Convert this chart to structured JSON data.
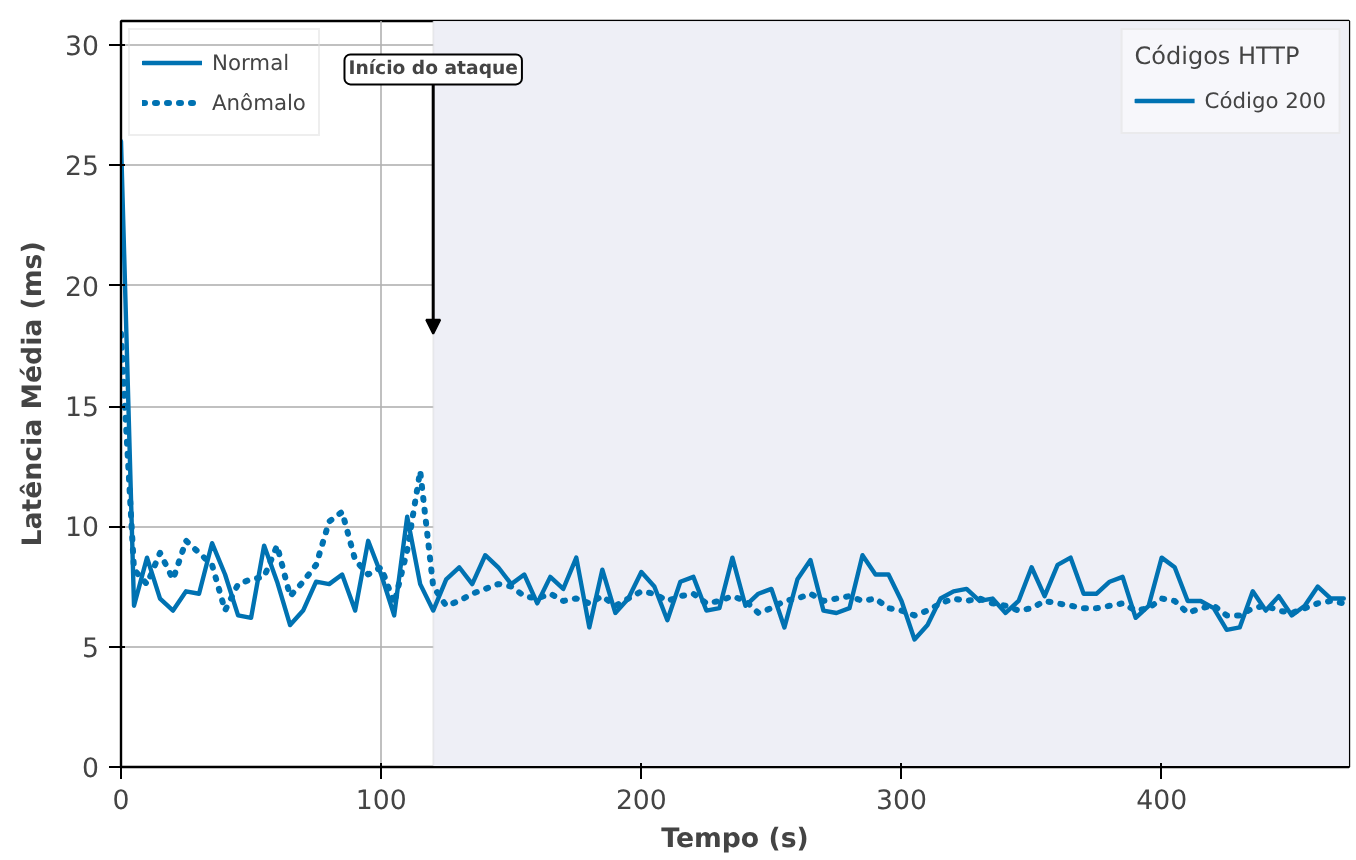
{
  "chart_data": {
    "type": "line",
    "xlabel": "Tempo (s)",
    "ylabel": "Latência Média (ms)",
    "legend_title": "Códigos HTTP",
    "x": [
      0,
      5,
      10,
      15,
      20,
      25,
      30,
      35,
      40,
      45,
      50,
      55,
      60,
      65,
      70,
      75,
      80,
      85,
      90,
      95,
      100,
      105,
      110,
      115,
      120,
      125,
      130,
      135,
      140,
      145,
      150,
      155,
      160,
      165,
      170,
      175,
      180,
      185,
      190,
      195,
      200,
      205,
      210,
      215,
      220,
      225,
      230,
      235,
      240,
      245,
      250,
      255,
      260,
      265,
      270,
      275,
      280,
      285,
      290,
      295,
      300,
      305,
      310,
      315,
      320,
      325,
      330,
      335,
      340,
      345,
      350,
      355,
      360,
      365,
      370,
      375,
      380,
      385,
      390,
      395,
      400,
      405,
      410,
      415,
      420,
      425,
      430,
      435,
      440,
      445,
      450,
      455,
      460,
      465,
      470
    ],
    "series": [
      {
        "name": "Normal",
        "color": "#0072b2",
        "line_style": "solid",
        "values": [
          26,
          6.7,
          8.7,
          7.0,
          6.5,
          7.3,
          7.2,
          9.3,
          8.0,
          6.3,
          6.2,
          9.2,
          7.7,
          5.9,
          6.5,
          7.7,
          7.6,
          8.0,
          6.5,
          9.4,
          8.0,
          6.3,
          10.4,
          7.6,
          6.5,
          7.8,
          8.3,
          7.6,
          8.8,
          8.3,
          7.6,
          8.0,
          6.8,
          7.9,
          7.4,
          8.7,
          5.8,
          8.2,
          6.4,
          7.0,
          8.1,
          7.5,
          6.1,
          7.7,
          7.9,
          6.5,
          6.6,
          8.7,
          6.7,
          7.2,
          7.4,
          5.8,
          7.8,
          8.6,
          6.5,
          6.4,
          6.6,
          8.8,
          8.0,
          8.0,
          6.9,
          5.3,
          5.9,
          7.0,
          7.3,
          7.4,
          6.9,
          7.0,
          6.4,
          6.9,
          8.3,
          7.1,
          8.4,
          8.7,
          7.2,
          7.2,
          7.7,
          7.9,
          6.2,
          6.7,
          8.7,
          8.3,
          6.9,
          6.9,
          6.6,
          5.7,
          5.8,
          7.3,
          6.5,
          7.1,
          6.3,
          6.7,
          7.5,
          7.0,
          7.0
        ]
      },
      {
        "name": "Anômalo",
        "color": "#0072b2",
        "line_style": "dotted",
        "values": [
          18,
          8.2,
          7.6,
          8.9,
          7.8,
          9.4,
          8.9,
          8.4,
          6.5,
          7.6,
          7.8,
          7.9,
          9.2,
          7.1,
          7.7,
          8.4,
          10.2,
          10.6,
          8.6,
          8.0,
          8.3,
          6.8,
          9.0,
          12.3,
          7.5,
          6.7,
          6.9,
          7.2,
          7.4,
          7.6,
          7.5,
          7.1,
          7.0,
          7.2,
          6.9,
          7.0,
          6.8,
          7.1,
          6.7,
          7.0,
          7.3,
          7.2,
          6.9,
          7.1,
          7.2,
          6.8,
          6.9,
          7.1,
          6.9,
          6.4,
          6.6,
          6.9,
          7.0,
          7.2,
          6.9,
          7.0,
          7.1,
          6.9,
          7.0,
          6.6,
          6.5,
          6.3,
          6.5,
          6.8,
          7.0,
          6.9,
          7.0,
          6.8,
          6.7,
          6.5,
          6.6,
          6.9,
          6.8,
          6.7,
          6.6,
          6.6,
          6.7,
          6.8,
          6.5,
          6.6,
          7.0,
          6.9,
          6.4,
          6.6,
          6.7,
          6.3,
          6.3,
          6.6,
          6.7,
          6.5,
          6.4,
          6.6,
          6.8,
          6.9,
          6.8
        ]
      }
    ],
    "xlim": [
      0,
      472
    ],
    "ylim": [
      0,
      31
    ],
    "xticks": [
      0,
      100,
      200,
      300,
      400
    ],
    "yticks": [
      0,
      5,
      10,
      15,
      20,
      25,
      30
    ],
    "grid": true,
    "legend": "top left",
    "bands": [
      {
        "axis": "x",
        "from": 120,
        "to": 472,
        "color": "#eeeff6"
      }
    ],
    "annotations": [
      {
        "text": "Início do ataque",
        "x": 120,
        "y": 18
      },
      "Código 200"
    ]
  }
}
